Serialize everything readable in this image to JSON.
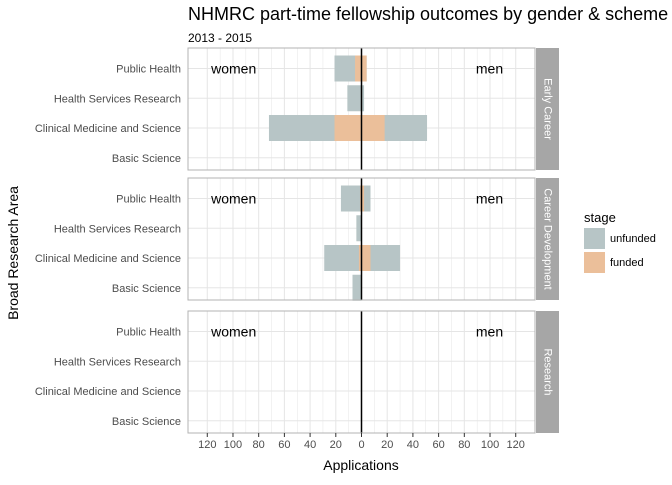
{
  "chart_data": {
    "type": "bar",
    "orientation": "horizontal",
    "layout": "back-to-back pyramid, faceted",
    "title": "NHMRC part-time fellowship outcomes by gender & scheme",
    "subtitle": "2013 - 2015",
    "xlabel": "Applications",
    "ylabel": "Broad Research Area",
    "xlim": [
      -135,
      135
    ],
    "x_ticks": [
      -120,
      -100,
      -80,
      -60,
      -40,
      -20,
      0,
      20,
      40,
      60,
      80,
      100,
      120
    ],
    "x_tick_labels": [
      "120",
      "100",
      "80",
      "60",
      "40",
      "20",
      "0",
      "20",
      "40",
      "60",
      "80",
      "100",
      "120"
    ],
    "categories": [
      "Public Health",
      "Health Services Research",
      "Clinical Medicine and Science",
      "Basic Science"
    ],
    "left_group_label": "women",
    "right_group_label": "men",
    "grid": true,
    "legend": {
      "title": "stage",
      "position": "right",
      "entries": [
        {
          "label": "unfunded",
          "color": "#b7c5c6"
        },
        {
          "label": "funded",
          "color": "#ebbf9a"
        }
      ]
    },
    "facets": [
      {
        "label": "Early Career",
        "women_unfunded": [
          21,
          11,
          72,
          0
        ],
        "women_funded": [
          5,
          0,
          21,
          0
        ],
        "men_unfunded": [
          4,
          2,
          51,
          0
        ],
        "men_funded": [
          4,
          0,
          18,
          0
        ]
      },
      {
        "label": "Career Development",
        "women_unfunded": [
          16,
          4,
          29,
          7
        ],
        "women_funded": [
          1,
          0,
          2,
          0
        ],
        "men_unfunded": [
          7,
          0,
          30,
          0
        ],
        "men_funded": [
          2,
          0,
          7,
          0
        ]
      },
      {
        "label": "Research",
        "women_unfunded": [
          0,
          0,
          0,
          0
        ],
        "women_funded": [
          0,
          0,
          0,
          0
        ],
        "men_unfunded": [
          0,
          0,
          0,
          0
        ],
        "men_funded": [
          0,
          0,
          0,
          0
        ]
      }
    ],
    "colors": {
      "panel_border": "#b3b3b3",
      "grid": "#e5e5e5",
      "strip": "#a6a6a6",
      "zero_line": "#000000"
    }
  }
}
